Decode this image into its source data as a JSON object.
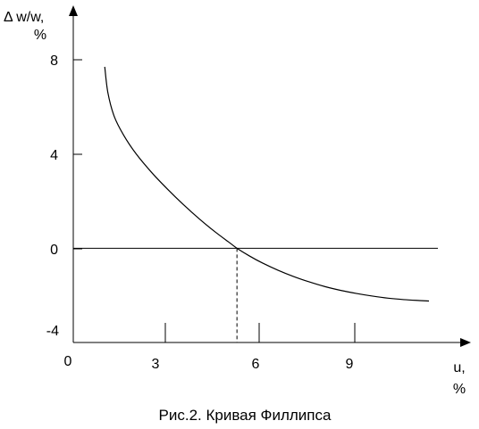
{
  "chart_data": {
    "type": "line",
    "title": "Рис.2. Кривая Филлипса",
    "ylabel_line1": "Δ w/w,",
    "ylabel_line2": "%",
    "xlabel_line1": "u,",
    "xlabel_line2": "%",
    "origin_label": "0",
    "x_ticks": [
      3,
      6,
      9
    ],
    "x_tick_labels": [
      "3",
      "6",
      "9"
    ],
    "y_ticks": [
      8,
      4,
      0,
      -4
    ],
    "y_tick_labels": [
      "8",
      "4",
      "0",
      "-4"
    ],
    "xlim": [
      0,
      12
    ],
    "ylim": [
      -4,
      8
    ],
    "grid": false,
    "legend": "none",
    "reference_lines": [
      {
        "type": "horizontal",
        "y": 0
      },
      {
        "type": "vertical-dashed",
        "x": 5.2,
        "from_y": -4,
        "to_y": 0
      }
    ],
    "series": [
      {
        "x": [
          1.0,
          1.1,
          1.3,
          1.6,
          2.0,
          2.5,
          3.0,
          3.5,
          4.0,
          4.5,
          5.0,
          5.2,
          5.6,
          6.0,
          6.5,
          7.0,
          7.5,
          8.0,
          8.5,
          9.0,
          9.5,
          10.0,
          10.5,
          11.0,
          11.3
        ],
        "values": [
          7.7,
          6.6,
          5.6,
          4.8,
          4.0,
          3.2,
          2.5,
          1.85,
          1.25,
          0.7,
          0.2,
          0.0,
          -0.33,
          -0.62,
          -0.93,
          -1.2,
          -1.43,
          -1.63,
          -1.79,
          -1.92,
          -2.03,
          -2.12,
          -2.18,
          -2.22,
          -2.24
        ]
      }
    ]
  }
}
